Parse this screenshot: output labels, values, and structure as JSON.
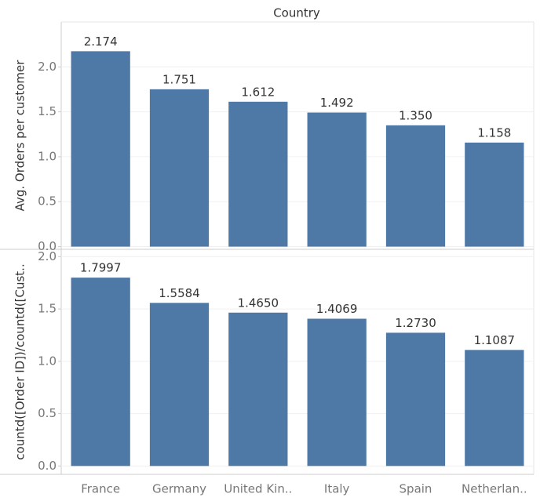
{
  "chart_data": [
    {
      "type": "bar",
      "x_label": "Country",
      "y_label": "Avg. Orders per customer",
      "values": [
        2.174,
        1.751,
        1.612,
        1.492,
        1.35,
        1.158
      ],
      "value_labels": [
        "2.174",
        "1.751",
        "1.612",
        "1.492",
        "1.350",
        "1.158"
      ],
      "color": "#4e78a6",
      "ylim": [
        -0.03,
        2.5
      ],
      "yticks": [
        {
          "value": 0,
          "label": "0.0"
        },
        0.5,
        {
          "value": 1,
          "label": "1.0"
        },
        1.5,
        {
          "value": 2,
          "label": "2.0"
        }
      ],
      "grid": true
    },
    {
      "type": "bar",
      "y_label": "countd([Order ID])/countd([Cust..",
      "categories": [
        "France",
        "Germany",
        "United Kin..",
        "Italy",
        "Spain",
        "Netherlan.."
      ],
      "values": [
        1.7997,
        1.5584,
        1.465,
        1.4069,
        1.273,
        1.1087
      ],
      "value_labels": [
        "1.7997",
        "1.5584",
        "1.4650",
        "1.4069",
        "1.2730",
        "1.1087"
      ],
      "color": "#4e78a6",
      "ylim": [
        -0.08,
        2.07
      ],
      "yticks": [
        {
          "value": 0,
          "label": "0.0"
        },
        0.5,
        {
          "value": 1,
          "label": "1.0"
        },
        1.5,
        {
          "value": 2,
          "label": "2.0"
        }
      ],
      "grid": true
    }
  ]
}
